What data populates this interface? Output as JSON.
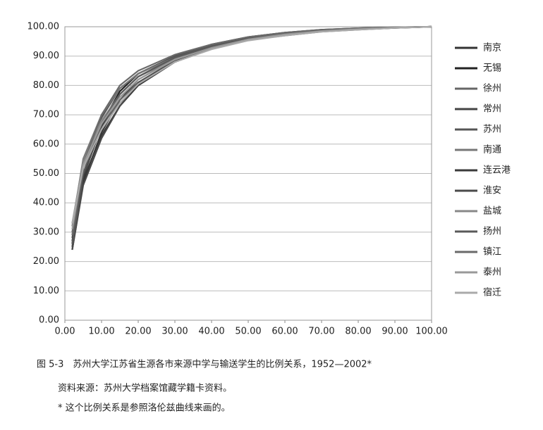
{
  "chart_data": {
    "type": "line",
    "xlim": [
      0,
      100
    ],
    "ylim": [
      0,
      100
    ],
    "xticks": [
      {
        "value": 0,
        "label": "0.00"
      },
      {
        "value": 10,
        "label": "10.00"
      },
      {
        "value": 20,
        "label": "20.00"
      },
      {
        "value": 30,
        "label": "30.00"
      },
      {
        "value": 40,
        "label": "40.00"
      },
      {
        "value": 50,
        "label": "50.00"
      },
      {
        "value": 60,
        "label": "60.00"
      },
      {
        "value": 70,
        "label": "70.00"
      },
      {
        "value": 80,
        "label": "80.00"
      },
      {
        "value": 90,
        "label": "90.00"
      },
      {
        "value": 100,
        "label": "100.00"
      }
    ],
    "yticks": [
      {
        "value": 0,
        "label": "0.00"
      },
      {
        "value": 10,
        "label": "10.00"
      },
      {
        "value": 20,
        "label": "20.00"
      },
      {
        "value": 30,
        "label": "30.00"
      },
      {
        "value": 40,
        "label": "40.00"
      },
      {
        "value": 50,
        "label": "50.00"
      },
      {
        "value": 60,
        "label": "60.00"
      },
      {
        "value": 70,
        "label": "70.00"
      },
      {
        "value": 80,
        "label": "80.00"
      },
      {
        "value": 90,
        "label": "90.00"
      },
      {
        "value": 100,
        "label": "100.00"
      }
    ],
    "grid": true,
    "legend": "right",
    "x": [
      2,
      5,
      10,
      15,
      20,
      30,
      40,
      50,
      60,
      70,
      80,
      90,
      100
    ],
    "series": [
      {
        "name": "南京",
        "color": "#333333",
        "values": [
          24,
          47,
          64,
          75,
          82,
          89,
          93,
          96,
          97.5,
          98.5,
          99.2,
          99.7,
          100
        ]
      },
      {
        "name": "无锡",
        "color": "#222222",
        "values": [
          26,
          50,
          67,
          78,
          84,
          90,
          94,
          96.5,
          98,
          99,
          99.5,
          99.8,
          100
        ]
      },
      {
        "name": "徐州",
        "color": "#666666",
        "values": [
          30,
          52,
          66,
          75,
          81,
          88,
          92.5,
          95.5,
          97,
          98.3,
          99,
          99.6,
          100
        ]
      },
      {
        "name": "常州",
        "color": "#444444",
        "values": [
          25,
          49,
          66,
          77,
          83,
          89.5,
          93.5,
          96,
          97.5,
          98.6,
          99.3,
          99.7,
          100
        ]
      },
      {
        "name": "苏州",
        "color": "#555555",
        "values": [
          28,
          52,
          69,
          79,
          84,
          90,
          93.5,
          96,
          97.6,
          98.7,
          99.3,
          99.7,
          100
        ]
      },
      {
        "name": "南通",
        "color": "#777777",
        "values": [
          32,
          55,
          70,
          79,
          84,
          89.5,
          93,
          95.8,
          97.4,
          98.5,
          99.2,
          99.7,
          100
        ]
      },
      {
        "name": "连云港",
        "color": "#3a3a3a",
        "values": [
          27,
          48,
          63,
          73,
          80,
          88,
          92.5,
          95.5,
          97.2,
          98.4,
          99.1,
          99.6,
          100
        ]
      },
      {
        "name": "淮安",
        "color": "#4a4a4a",
        "values": [
          24,
          46,
          62,
          73,
          81,
          88.5,
          93,
          96,
          97.5,
          98.6,
          99.3,
          99.7,
          100
        ]
      },
      {
        "name": "盐城",
        "color": "#888888",
        "values": [
          33,
          54,
          68,
          77,
          83,
          89,
          92.8,
          95.6,
          97.3,
          98.5,
          99.2,
          99.7,
          100
        ]
      },
      {
        "name": "扬州",
        "color": "#5a5a5a",
        "values": [
          26,
          50,
          67,
          77,
          83,
          89.5,
          93.3,
          95.9,
          97.5,
          98.6,
          99.2,
          99.7,
          100
        ]
      },
      {
        "name": "镇江",
        "color": "#6a6a6a",
        "values": [
          29,
          53,
          70,
          80,
          85,
          90.5,
          94,
          96.5,
          98,
          99,
          99.5,
          99.8,
          100
        ]
      },
      {
        "name": "泰州",
        "color": "#999999",
        "values": [
          31,
          53,
          67,
          76,
          82,
          88.8,
          92.8,
          95.7,
          97.4,
          98.5,
          99.2,
          99.7,
          100
        ]
      },
      {
        "name": "宿迁",
        "color": "#aaaaaa",
        "values": [
          33,
          52,
          65,
          74,
          80.5,
          88,
          92.3,
          95.3,
          97,
          98.3,
          99,
          99.6,
          100
        ]
      }
    ],
    "caption": "图 5-3　苏州大学江苏省生源各市来源中学与输送学生的比例关系，1952—2002*",
    "source": "资料来源：苏州大学档案馆藏学籍卡资料。",
    "note": "* 这个比例关系是参照洛伦兹曲线来画的。"
  }
}
